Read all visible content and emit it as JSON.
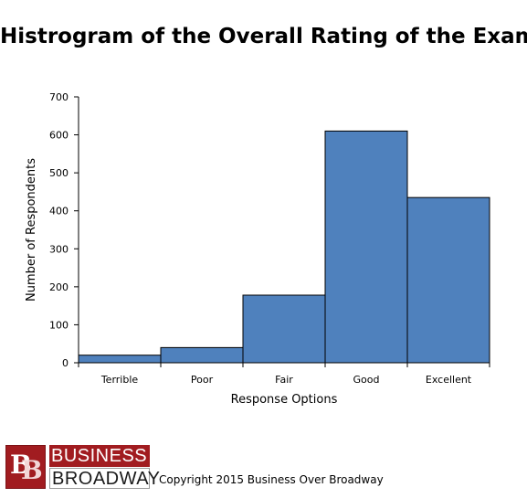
{
  "chart_data": {
    "type": "bar",
    "title": "Histrogram of the Overall Rating of the Exam",
    "categories": [
      "Terrible",
      "Poor",
      "Fair",
      "Good",
      "Excellent"
    ],
    "values": [
      20,
      40,
      178,
      610,
      435
    ],
    "xlabel": "Response Options",
    "ylabel": "Number of Respondents",
    "ylim": [
      0,
      700
    ],
    "yticks": [
      0,
      100,
      200,
      300,
      400,
      500,
      600,
      700
    ],
    "grid": false,
    "legend": "none",
    "bar_color": "#4f81bd",
    "bar_edge_color": "#000000"
  },
  "footer": {
    "logo_letters": "BB",
    "logo_line1": "BUSINESS",
    "logo_line2": "BROADWAY",
    "copyright": "Copyright 2015 Business Over Broadway",
    "brand_color": "#a11c20"
  }
}
